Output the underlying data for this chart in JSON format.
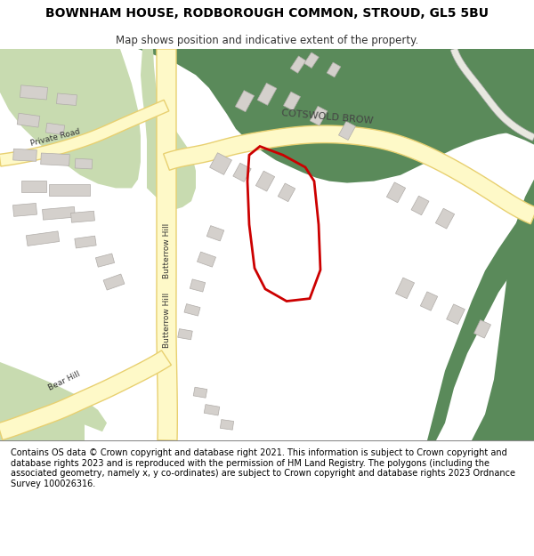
{
  "title_line1": "BOWNHAM HOUSE, RODBOROUGH COMMON, STROUD, GL5 5BU",
  "title_line2": "Map shows position and indicative extent of the property.",
  "footer_text": "Contains OS data © Crown copyright and database right 2021. This information is subject to Crown copyright and database rights 2023 and is reproduced with the permission of HM Land Registry. The polygons (including the associated geometry, namely x, y co-ordinates) are subject to Crown copyright and database rights 2023 Ordnance Survey 100026316.",
  "map_bg": "#f8f8f8",
  "green_dark": "#5a8a5a",
  "green_light": "#c8dbb0",
  "road_fill": "#fef9c8",
  "road_stroke": "#e8d070",
  "building_color": "#d4d0cc",
  "building_stroke": "#b0aca8",
  "plot_color": "#cc0000"
}
